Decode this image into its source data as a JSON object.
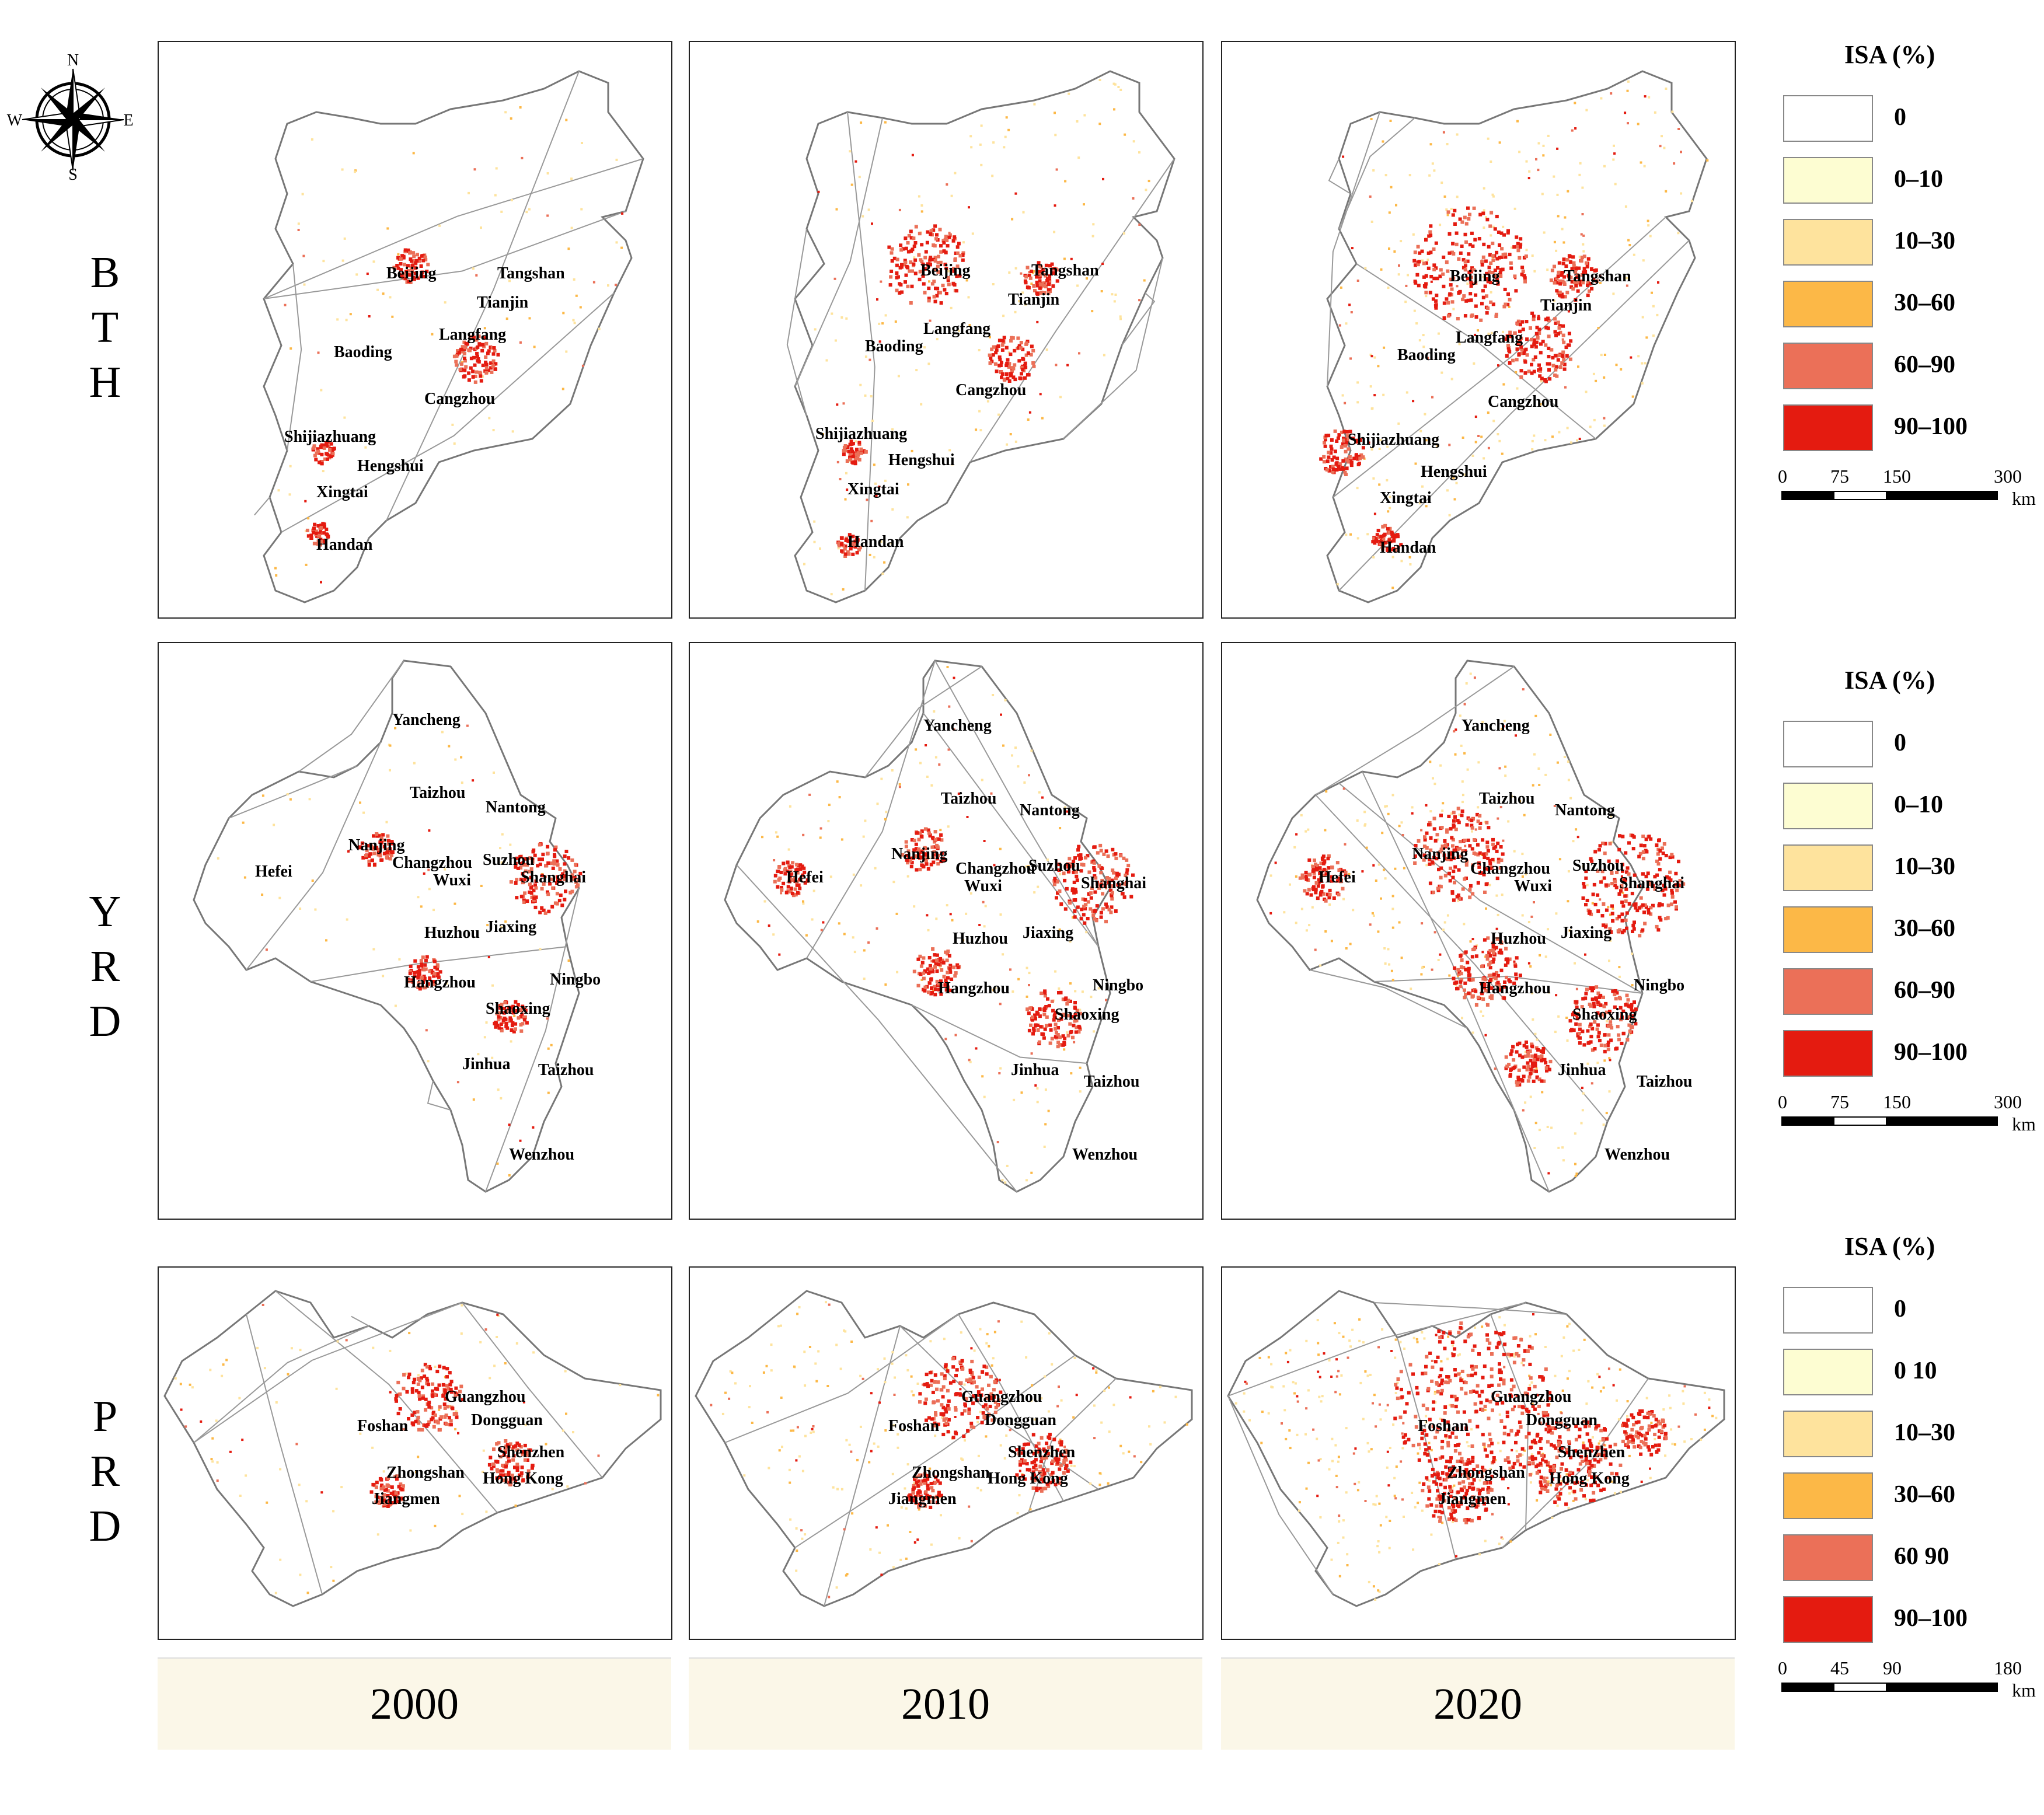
{
  "compass": {
    "n": "N",
    "e": "E",
    "s": "S",
    "w": "W"
  },
  "regions": [
    {
      "label": "B\nT\nH",
      "cities": [
        "Beijing",
        "Tangshan",
        "Tianjin",
        "Langfang",
        "Baoding",
        "Cangzhou",
        "Shijiazhuang",
        "Hengshui",
        "Xingtai",
        "Handan"
      ]
    },
    {
      "label": "Y\nR\nD",
      "cities": [
        "Yancheng",
        "Taizhou",
        "Nantong",
        "Nanjing",
        "Hefei",
        "Changzhou",
        "Suzhou",
        "Wuxi",
        "Shanghai",
        "Huzhou",
        "Jiaxing",
        "Hangzhou",
        "Ningbo",
        "Shaoxing",
        "Jinhua",
        "Taizhou",
        "Wenzhou"
      ]
    },
    {
      "label": "P\nR\nD",
      "cities": [
        "Guangzhou",
        "Foshan",
        "Dongguan",
        "Shenzhen",
        "Zhongshan",
        "Hong Kong",
        "Jiangmen"
      ]
    }
  ],
  "years": [
    "2000",
    "2010",
    "2020"
  ],
  "legends": [
    {
      "title": "ISA (%)",
      "items": [
        {
          "label": "0",
          "color": "#ffffff"
        },
        {
          "label": "0–10",
          "color": "#fdfdd2"
        },
        {
          "label": "10–30",
          "color": "#fee39d"
        },
        {
          "label": "30–60",
          "color": "#fcb847"
        },
        {
          "label": "60–90",
          "color": "#eb7058"
        },
        {
          "label": "90–100",
          "color": "#e41b10"
        }
      ],
      "scale": {
        "ticks": [
          "0",
          "75",
          "150",
          "300"
        ],
        "unit": "km"
      }
    },
    {
      "title": "ISA (%)",
      "items": [
        {
          "label": "0",
          "color": "#ffffff"
        },
        {
          "label": "0–10",
          "color": "#fdfdd2"
        },
        {
          "label": "10–30",
          "color": "#fee39d"
        },
        {
          "label": "30–60",
          "color": "#fcb847"
        },
        {
          "label": "60–90",
          "color": "#eb7058"
        },
        {
          "label": "90–100",
          "color": "#e41b10"
        }
      ],
      "scale": {
        "ticks": [
          "0",
          "75",
          "150",
          "300"
        ],
        "unit": "km"
      }
    },
    {
      "title": "ISA (%)",
      "items": [
        {
          "label": "0",
          "color": "#ffffff"
        },
        {
          "label": "0 10",
          "color": "#fdfdd2"
        },
        {
          "label": "10–30",
          "color": "#fee39d"
        },
        {
          "label": "30–60",
          "color": "#fcb847"
        },
        {
          "label": "60 90",
          "color": "#eb7058"
        },
        {
          "label": "90–100",
          "color": "#e41b10"
        }
      ],
      "scale": {
        "ticks": [
          "0",
          "45",
          "90",
          "180"
        ],
        "unit": "km"
      }
    }
  ]
}
